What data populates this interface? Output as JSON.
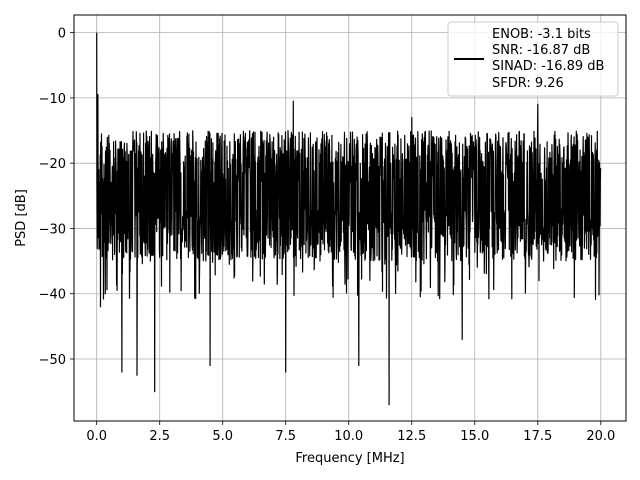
{
  "chart_data": {
    "type": "line",
    "title": "",
    "xlabel": "Frequency [MHz]",
    "ylabel": "PSD [dB]",
    "xlim": [
      -0.9,
      21.0
    ],
    "ylim": [
      -59.5,
      2.7
    ],
    "x_ticks": [
      0.0,
      2.5,
      5.0,
      7.5,
      10.0,
      12.5,
      15.0,
      17.5,
      20.0
    ],
    "x_tick_labels": [
      "0.0",
      "2.5",
      "5.0",
      "7.5",
      "10.0",
      "12.5",
      "15.0",
      "17.5",
      "20.0"
    ],
    "y_ticks": [
      0,
      -10,
      -20,
      -30,
      -40,
      -50
    ],
    "y_tick_labels": [
      "0",
      "−10",
      "−20",
      "−30",
      "−40",
      "−50"
    ],
    "grid": true,
    "legend_position": "top-right",
    "series_color": "#000000",
    "series": [
      {
        "name": "ENOB: -3.1 bits",
        "x_range": [
          0.0,
          20.0
        ],
        "peak": {
          "x": 0.0,
          "y": 0.0
        },
        "noise_floor_band": [
          -30,
          -15
        ],
        "upper_peaks": [
          {
            "x": 0.05,
            "y": -9.5
          },
          {
            "x": 7.8,
            "y": -10.5
          },
          {
            "x": 17.5,
            "y": -11.0
          },
          {
            "x": 12.5,
            "y": -13.0
          }
        ],
        "lower_dips": [
          {
            "x": 0.15,
            "y": -42.0
          },
          {
            "x": 1.0,
            "y": -52.0
          },
          {
            "x": 1.6,
            "y": -52.5
          },
          {
            "x": 2.3,
            "y": -55.0
          },
          {
            "x": 4.5,
            "y": -51.0
          },
          {
            "x": 7.5,
            "y": -52.0
          },
          {
            "x": 10.4,
            "y": -51.0
          },
          {
            "x": 11.6,
            "y": -57.0
          },
          {
            "x": 14.5,
            "y": -47.0
          }
        ]
      }
    ],
    "legend_lines": [
      "ENOB: -3.1 bits",
      "SNR: -16.87 dB",
      "SINAD: -16.89 dB",
      "SFDR: 9.26"
    ]
  }
}
